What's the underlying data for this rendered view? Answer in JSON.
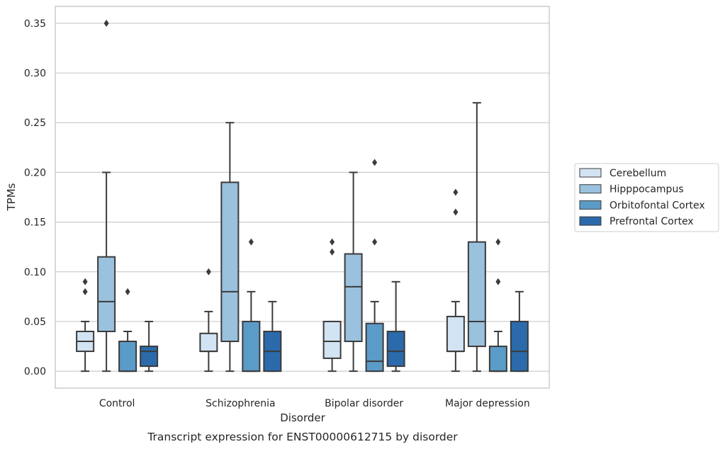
{
  "chart_data": {
    "type": "box",
    "caption": "Transcript expression for ENST00000612715 by disorder",
    "xlabel": "Disorder",
    "ylabel": "TPMs",
    "ylim": [
      -0.017,
      0.367
    ],
    "yticks": [
      0.0,
      0.05,
      0.1,
      0.15,
      0.2,
      0.25,
      0.3,
      0.35
    ],
    "ytick_labels": [
      "0.00",
      "0.05",
      "0.10",
      "0.15",
      "0.20",
      "0.25",
      "0.30",
      "0.35"
    ],
    "grid": "horizontal",
    "legend_position": "right",
    "categories": [
      "Control",
      "Schizophrenia",
      "Bipolar disorder",
      "Major depression"
    ],
    "series": [
      {
        "name": "Cerebellum",
        "color": "#d2e3f3",
        "boxes": [
          {
            "whisker_low": 0.0,
            "q1": 0.02,
            "median": 0.03,
            "q3": 0.04,
            "whisker_high": 0.05,
            "outliers": [
              0.08,
              0.09
            ]
          },
          {
            "whisker_low": 0.0,
            "q1": 0.02,
            "median": 0.02,
            "q3": 0.038,
            "whisker_high": 0.06,
            "outliers": [
              0.1
            ]
          },
          {
            "whisker_low": 0.0,
            "q1": 0.013,
            "median": 0.03,
            "q3": 0.05,
            "whisker_high": 0.05,
            "outliers": [
              0.12,
              0.13
            ]
          },
          {
            "whisker_low": 0.0,
            "q1": 0.02,
            "median": 0.02,
            "q3": 0.055,
            "whisker_high": 0.07,
            "outliers": [
              0.16,
              0.18
            ]
          }
        ]
      },
      {
        "name": "Hipppocampus",
        "color": "#9ac1dd",
        "boxes": [
          {
            "whisker_low": 0.0,
            "q1": 0.04,
            "median": 0.07,
            "q3": 0.115,
            "whisker_high": 0.2,
            "outliers": [
              0.35
            ]
          },
          {
            "whisker_low": 0.0,
            "q1": 0.03,
            "median": 0.08,
            "q3": 0.19,
            "whisker_high": 0.25,
            "outliers": []
          },
          {
            "whisker_low": 0.0,
            "q1": 0.03,
            "median": 0.085,
            "q3": 0.118,
            "whisker_high": 0.2,
            "outliers": []
          },
          {
            "whisker_low": 0.0,
            "q1": 0.025,
            "median": 0.05,
            "q3": 0.13,
            "whisker_high": 0.27,
            "outliers": []
          }
        ]
      },
      {
        "name": "Orbitofontal Cortex",
        "color": "#5b9bc8",
        "boxes": [
          {
            "whisker_low": 0.0,
            "q1": 0.0,
            "median": 0.0,
            "q3": 0.03,
            "whisker_high": 0.04,
            "outliers": [
              0.08
            ]
          },
          {
            "whisker_low": 0.0,
            "q1": 0.0,
            "median": 0.0,
            "q3": 0.05,
            "whisker_high": 0.08,
            "outliers": [
              0.13
            ]
          },
          {
            "whisker_low": 0.0,
            "q1": 0.0,
            "median": 0.01,
            "q3": 0.048,
            "whisker_high": 0.07,
            "outliers": [
              0.13,
              0.21
            ]
          },
          {
            "whisker_low": 0.0,
            "q1": 0.0,
            "median": 0.0,
            "q3": 0.025,
            "whisker_high": 0.04,
            "outliers": [
              0.09,
              0.13
            ]
          }
        ]
      },
      {
        "name": "Prefrontal Cortex",
        "color": "#2b6aab",
        "boxes": [
          {
            "whisker_low": 0.0,
            "q1": 0.005,
            "median": 0.02,
            "q3": 0.025,
            "whisker_high": 0.05,
            "outliers": []
          },
          {
            "whisker_low": 0.0,
            "q1": 0.0,
            "median": 0.02,
            "q3": 0.04,
            "whisker_high": 0.07,
            "outliers": []
          },
          {
            "whisker_low": 0.0,
            "q1": 0.005,
            "median": 0.02,
            "q3": 0.04,
            "whisker_high": 0.09,
            "outliers": []
          },
          {
            "whisker_low": 0.0,
            "q1": 0.0,
            "median": 0.02,
            "q3": 0.05,
            "whisker_high": 0.08,
            "outliers": []
          }
        ]
      }
    ]
  }
}
